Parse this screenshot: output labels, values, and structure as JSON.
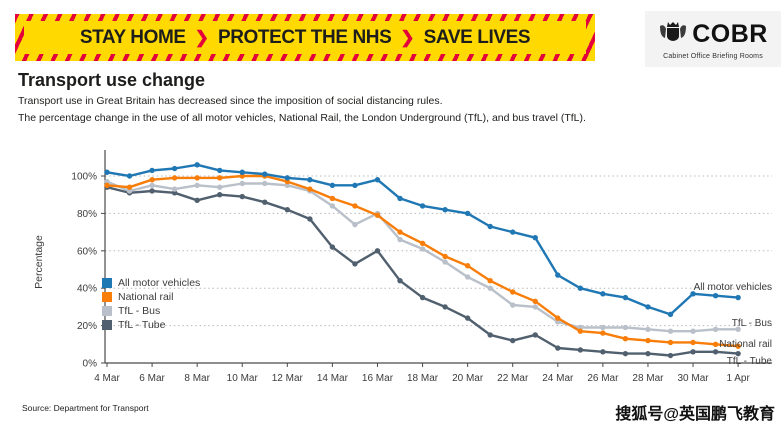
{
  "banner": {
    "segments": [
      "STAY HOME",
      "PROTECT THE NHS",
      "SAVE LIVES"
    ],
    "separator": "❯",
    "bg_color": "#ffd900",
    "stripe_color": "#e4003b"
  },
  "logo": {
    "title": "COBR",
    "subtitle": "Cabinet Office Briefing Rooms"
  },
  "header": {
    "title": "Transport use change",
    "subtitle_line1": "Transport use in Great Britain has decreased since the imposition of social distancing rules.",
    "subtitle_line2": "The percentage change in the use of all motor vehicles, National Rail, the London Underground (TfL), and bus travel (TfL)."
  },
  "chart_data": {
    "type": "line",
    "ylabel": "Percentage",
    "ylim": [
      0,
      112
    ],
    "grid": "horizontal-dotted",
    "legend_position": "inside-left",
    "y_ticks": [
      "0%",
      "20%",
      "40%",
      "60%",
      "80%",
      "100%"
    ],
    "x_tick_labels": [
      "4 Mar",
      "6 Mar",
      "8 Mar",
      "10 Mar",
      "12 Mar",
      "14 Mar",
      "16 Mar",
      "18 Mar",
      "20 Mar",
      "22 Mar",
      "24 Mar",
      "26 Mar",
      "28 Mar",
      "30 Mar",
      "1 Apr"
    ],
    "categories": [
      "4 Mar",
      "5 Mar",
      "6 Mar",
      "7 Mar",
      "8 Mar",
      "9 Mar",
      "10 Mar",
      "11 Mar",
      "12 Mar",
      "13 Mar",
      "14 Mar",
      "15 Mar",
      "16 Mar",
      "17 Mar",
      "18 Mar",
      "19 Mar",
      "20 Mar",
      "21 Mar",
      "22 Mar",
      "23 Mar",
      "24 Mar",
      "25 Mar",
      "26 Mar",
      "27 Mar",
      "28 Mar",
      "29 Mar",
      "30 Mar",
      "31 Mar",
      "1 Apr"
    ],
    "series": [
      {
        "name": "All motor vehicles",
        "color": "#1f77b4",
        "values": [
          102,
          100,
          103,
          104,
          106,
          103,
          102,
          101,
          99,
          98,
          95,
          95,
          98,
          88,
          84,
          82,
          80,
          73,
          70,
          67,
          47,
          40,
          37,
          35,
          30,
          26,
          37,
          36,
          35
        ]
      },
      {
        "name": "National rail",
        "color": "#f87d09",
        "values": [
          95,
          94,
          98,
          99,
          99,
          99,
          100,
          100,
          97,
          93,
          88,
          84,
          79,
          70,
          64,
          57,
          52,
          44,
          38,
          33,
          24,
          17,
          16,
          13,
          12,
          11,
          11,
          10,
          9
        ]
      },
      {
        "name": "TfL - Bus",
        "color": "#b9c0c9",
        "values": [
          97,
          92,
          95,
          93,
          95,
          94,
          96,
          96,
          95,
          92,
          84,
          74,
          80,
          66,
          61,
          54,
          46,
          40,
          31,
          30,
          22,
          19,
          19,
          19,
          18,
          17,
          17,
          18,
          18
        ]
      },
      {
        "name": "TfL - Tube",
        "color": "#51606e",
        "values": [
          94,
          91,
          92,
          91,
          87,
          90,
          89,
          86,
          82,
          77,
          62,
          53,
          60,
          44,
          35,
          30,
          24,
          15,
          12,
          15,
          8,
          7,
          6,
          5,
          5,
          4,
          6,
          6,
          5
        ]
      }
    ],
    "end_labels": [
      "All motor vehicles",
      "TfL - Bus",
      "National rail",
      "TfL - Tube"
    ]
  },
  "footer": {
    "source": "Source: Department for Transport",
    "watermark": "搜狐号@英国鹏飞教育"
  }
}
